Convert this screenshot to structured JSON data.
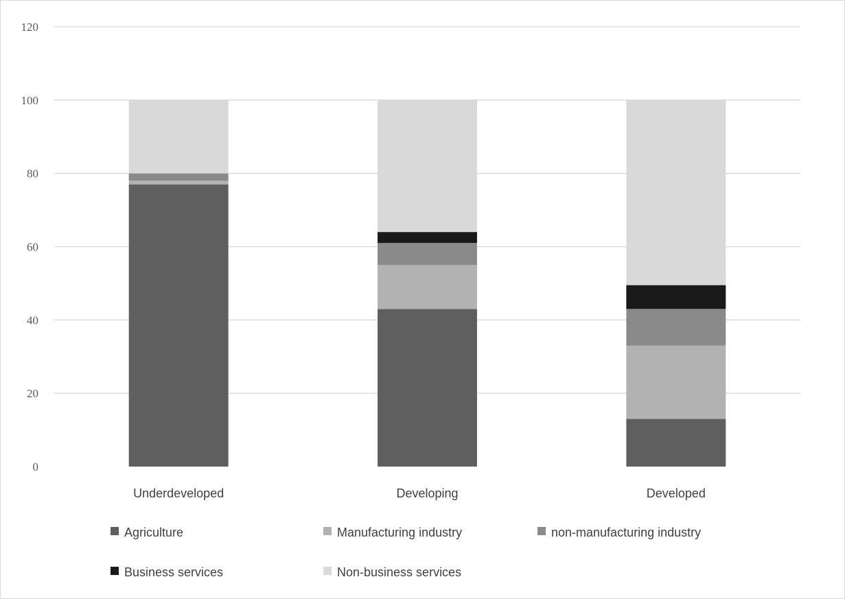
{
  "chart_data": {
    "type": "bar",
    "stacked": true,
    "categories": [
      "Underdeveloped",
      "Developing",
      "Developed"
    ],
    "ytick_labels": [
      "0",
      "20",
      "40",
      "60",
      "80",
      "100",
      "120"
    ],
    "ylim": [
      0,
      120
    ],
    "grid": true,
    "legend_position": "bottom",
    "series": [
      {
        "name": "Agriculture",
        "color": "#5f5f5f",
        "values": [
          77,
          43,
          13
        ]
      },
      {
        "name": "Manufacturing industry",
        "color": "#b2b2b2",
        "values": [
          1,
          12,
          20
        ]
      },
      {
        "name": "non-manufacturing industry",
        "color": "#8a8a8a",
        "values": [
          2,
          6,
          10
        ]
      },
      {
        "name": "Business services",
        "color": "#1a1a1a",
        "values": [
          0,
          3,
          6.5
        ]
      },
      {
        "name": "Non-business services",
        "color": "#d9d9d9",
        "values": [
          20,
          36,
          50.5
        ]
      }
    ]
  }
}
